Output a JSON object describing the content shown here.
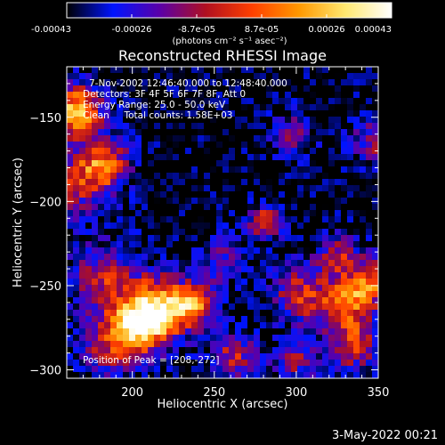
{
  "chart_data": {
    "type": "heatmap",
    "title": "Reconstructed RHESSI Image",
    "xlabel": "Heliocentric X (arcsec)",
    "ylabel": "Heliocentric Y (arcsec)",
    "xlim": [
      160,
      350
    ],
    "ylim": [
      -305,
      -120
    ],
    "x_ticks": [
      "200",
      "250",
      "300",
      "350"
    ],
    "y_ticks": [
      "-150",
      "-200",
      "-250",
      "-300"
    ],
    "colorbar": {
      "range": [
        -0.00043,
        0.00043
      ],
      "tick_labels": [
        "-0.00043",
        "-0.00026",
        "-8.7e-05",
        "8.7e-05",
        "0.00026",
        "0.00043"
      ],
      "unit": "(photons cm⁻² s⁻¹ asec⁻²)"
    },
    "annotations": [
      "7-Nov-2002 12:46:40.000 to 12:48:40.000",
      "Detectors: 3F 4F 5F 6F 7F 8F, Att 0",
      "Energy Range: 25.0 - 50.0 keV",
      "Clean     Total counts: 1.58E+03"
    ],
    "peak_label": "Position of Peak = [208,-272]",
    "sources": [
      {
        "x": 166,
        "y": -146,
        "sigma": 11,
        "amp": 1.0
      },
      {
        "x": 183,
        "y": -178,
        "sigma": 11,
        "amp": 0.75
      },
      {
        "x": 162,
        "y": -190,
        "sigma": 14,
        "amp": 0.55
      },
      {
        "x": 205,
        "y": -272,
        "sigma": 12,
        "amp": 0.95
      },
      {
        "x": 218,
        "y": -262,
        "sigma": 14,
        "amp": 0.75
      },
      {
        "x": 238,
        "y": -262,
        "sigma": 9,
        "amp": 0.7
      },
      {
        "x": 182,
        "y": -245,
        "sigma": 14,
        "amp": 0.55
      },
      {
        "x": 185,
        "y": -285,
        "sigma": 13,
        "amp": 0.55
      },
      {
        "x": 262,
        "y": -292,
        "sigma": 10,
        "amp": 0.55
      },
      {
        "x": 281,
        "y": -213,
        "sigma": 7,
        "amp": 0.75
      },
      {
        "x": 302,
        "y": -255,
        "sigma": 12,
        "amp": 0.6
      },
      {
        "x": 330,
        "y": -262,
        "sigma": 12,
        "amp": 0.7
      },
      {
        "x": 345,
        "y": -248,
        "sigma": 10,
        "amp": 0.65
      },
      {
        "x": 335,
        "y": -287,
        "sigma": 10,
        "amp": 0.6
      },
      {
        "x": 348,
        "y": -165,
        "sigma": 10,
        "amp": 0.5
      },
      {
        "x": 298,
        "y": -160,
        "sigma": 9,
        "amp": 0.4
      },
      {
        "x": 325,
        "y": -232,
        "sigma": 9,
        "amp": 0.5
      },
      {
        "x": 255,
        "y": -235,
        "sigma": 10,
        "amp": 0.35
      },
      {
        "x": 300,
        "y": -295,
        "sigma": 10,
        "amp": 0.45
      }
    ],
    "background": -0.25,
    "noise": 0.18,
    "colormap": [
      "#000000",
      "#0014ff",
      "#5a00a8",
      "#b01020",
      "#ff4000",
      "#ff9800",
      "#ffe870",
      "#ffffff"
    ]
  },
  "footer": {
    "timestamp": "3-May-2022 00:21"
  }
}
